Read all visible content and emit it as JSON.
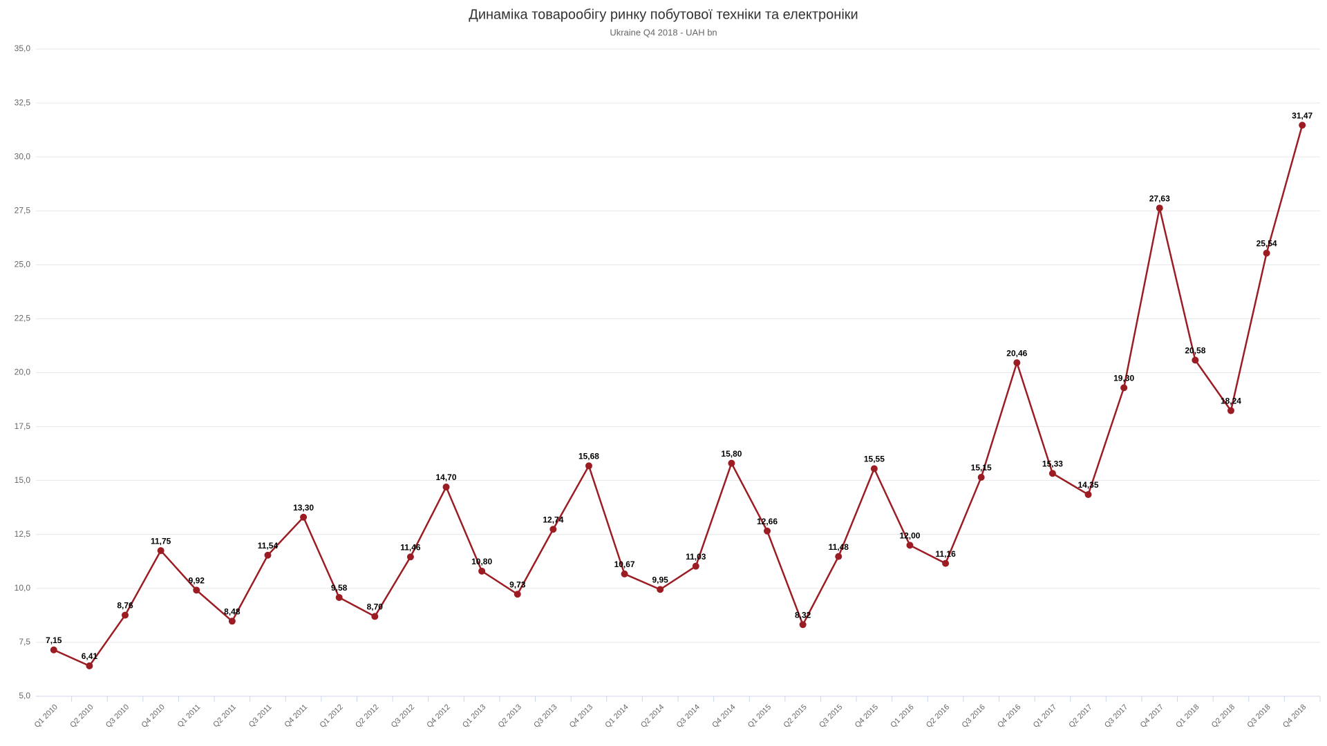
{
  "chart_data": {
    "type": "line",
    "title": "Динаміка товарообігу ринку побутової техніки та електроніки",
    "subtitle": "Ukraine Q4 2018 - UAH bn",
    "categories": [
      "Q1 2010",
      "Q2 2010",
      "Q3 2010",
      "Q4 2010",
      "Q1 2011",
      "Q2 2011",
      "Q3 2011",
      "Q4 2011",
      "Q1 2012",
      "Q2 2012",
      "Q3 2012",
      "Q4 2012",
      "Q1 2013",
      "Q2 2013",
      "Q3 2013",
      "Q4 2013",
      "Q1 2014",
      "Q2 2014",
      "Q3 2014",
      "Q4 2014",
      "Q1 2015",
      "Q2 2015",
      "Q3 2015",
      "Q4 2015",
      "Q1 2016",
      "Q2 2016",
      "Q3 2016",
      "Q4 2016",
      "Q1 2017",
      "Q2 2017",
      "Q3 2017",
      "Q4 2017",
      "Q1 2018",
      "Q2 2018",
      "Q3 2018",
      "Q4 2018"
    ],
    "values": [
      7.15,
      6.41,
      8.76,
      11.75,
      9.92,
      8.48,
      11.54,
      13.3,
      9.58,
      8.7,
      11.46,
      14.7,
      10.8,
      9.73,
      12.74,
      15.68,
      10.67,
      9.95,
      11.03,
      15.8,
      12.66,
      8.32,
      11.48,
      15.55,
      12.0,
      11.16,
      15.15,
      20.46,
      15.33,
      14.35,
      19.3,
      27.63,
      20.58,
      18.24,
      25.54,
      31.47
    ],
    "value_labels": [
      "7,15",
      "6,41",
      "8,76",
      "11,75",
      "9,92",
      "8,48",
      "11,54",
      "13,30",
      "9,58",
      "8,70",
      "11,46",
      "14,70",
      "10,80",
      "9,73",
      "12,74",
      "15,68",
      "10,67",
      "9,95",
      "11,03",
      "15,80",
      "12,66",
      "8,32",
      "11,48",
      "15,55",
      "12,00",
      "11,16",
      "15,15",
      "20,46",
      "15,33",
      "14,35",
      "19,30",
      "27,63",
      "20,58",
      "18,24",
      "25,54",
      "31,47"
    ],
    "color": "#9b1c23",
    "ylim": [
      5,
      35
    ],
    "yticks": [
      {
        "value": 5,
        "label": "5,0"
      },
      {
        "value": 7.5,
        "label": "7,5"
      },
      {
        "value": 10,
        "label": "10,0"
      },
      {
        "value": 12.5,
        "label": "12,5"
      },
      {
        "value": 15,
        "label": "15,0"
      },
      {
        "value": 17.5,
        "label": "17,5"
      },
      {
        "value": 20,
        "label": "20,0"
      },
      {
        "value": 22.5,
        "label": "22,5"
      },
      {
        "value": 25,
        "label": "25,0"
      },
      {
        "value": 27.5,
        "label": "27,5"
      },
      {
        "value": 30,
        "label": "30,0"
      },
      {
        "value": 32.5,
        "label": "32,5"
      },
      {
        "value": 35,
        "label": "35,0"
      }
    ],
    "grid": true
  }
}
